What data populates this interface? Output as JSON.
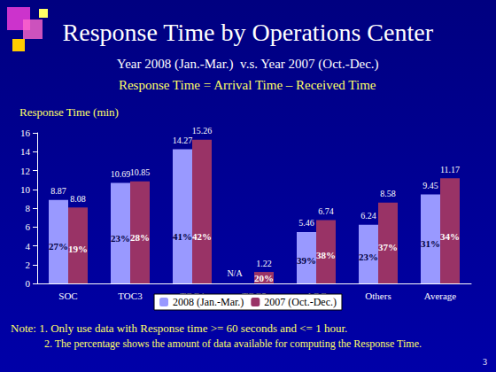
{
  "chart_data": {
    "type": "bar",
    "title": "Response Time by Operations Center",
    "subtitle": "Year 2008 (Jan.-Mar.)  v.s. Year 2007 (Oct.-Dec.)",
    "annotations": [
      "Response Time = Arrival Time – Received Time",
      "Note: 1. Only use data with Response time >= 60 seconds and <= 1 hour.",
      "2. The percentage shows the amount of data available for computing the Response Time.",
      "3"
    ],
    "y_label": "Response Time (min)",
    "categories": [
      "SOC",
      "TOC3",
      "TOC4",
      "TOC5",
      "AOC",
      "Others",
      "Average"
    ],
    "series": [
      {
        "name": "2008 (Jan.-Mar.)",
        "color": "#9999ff",
        "values": [
          8.87,
          10.69,
          14.27,
          null,
          5.46,
          6.24,
          9.45
        ],
        "value_labels": [
          "8.87",
          "10.69",
          "14.27",
          "N/A",
          "5.46",
          "6.24",
          "9.45"
        ],
        "availability_labels": [
          "27%",
          "23%",
          "41%",
          null,
          "39%",
          "23%",
          "31%"
        ]
      },
      {
        "name": "2007 (Oct.-Dec.)",
        "color": "#993366",
        "values": [
          8.08,
          10.85,
          15.26,
          1.22,
          6.74,
          8.58,
          11.17
        ],
        "availability_labels": [
          "19%",
          "28%",
          "42%",
          "20%",
          "38%",
          "37%",
          "34%"
        ]
      }
    ],
    "ylim": [
      0,
      16
    ],
    "yticks": [
      0,
      2,
      4,
      6,
      8,
      10,
      12,
      14,
      16
    ],
    "grid": false,
    "legend": "bottom",
    "data_labels": true
  }
}
